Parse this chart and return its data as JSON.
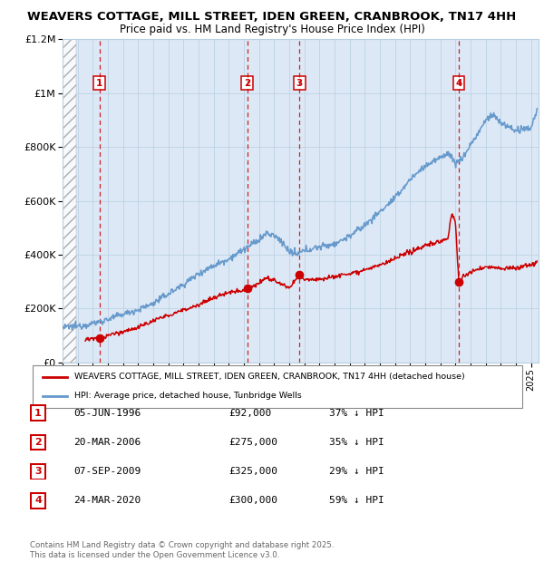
{
  "title": "WEAVERS COTTAGE, MILL STREET, IDEN GREEN, CRANBROOK, TN17 4HH",
  "subtitle": "Price paid vs. HM Land Registry's House Price Index (HPI)",
  "legend_label_red": "WEAVERS COTTAGE, MILL STREET, IDEN GREEN, CRANBROOK, TN17 4HH (detached house)",
  "legend_label_blue": "HPI: Average price, detached house, Tunbridge Wells",
  "footer": "Contains HM Land Registry data © Crown copyright and database right 2025.\nThis data is licensed under the Open Government Licence v3.0.",
  "transactions": [
    {
      "num": 1,
      "date": "05-JUN-1996",
      "price": 92000,
      "pct": "37% ↓ HPI",
      "x_year": 1996.43
    },
    {
      "num": 2,
      "date": "20-MAR-2006",
      "price": 275000,
      "pct": "35% ↓ HPI",
      "x_year": 2006.22
    },
    {
      "num": 3,
      "date": "07-SEP-2009",
      "price": 325000,
      "pct": "29% ↓ HPI",
      "x_year": 2009.68
    },
    {
      "num": 4,
      "date": "24-MAR-2020",
      "price": 300000,
      "pct": "59% ↓ HPI",
      "x_year": 2020.22
    }
  ],
  "ylim": [
    0,
    1200000
  ],
  "xlim": [
    1994.0,
    2025.5
  ],
  "hatch_end": 1994.9,
  "background_color": "#ddeeff",
  "plot_bg": "#dce8f5",
  "red_color": "#cc0000",
  "blue_color": "#6699cc",
  "grid_color": "#b8cfe0",
  "hpi_keypoints_x": [
    1994.0,
    1995.0,
    1996,
    1997,
    1998,
    1999,
    2000,
    2001,
    2002,
    2003,
    2004,
    2005,
    2006,
    2007,
    2007.5,
    2008.0,
    2008.5,
    2009.0,
    2009.5,
    2010,
    2011,
    2012,
    2013,
    2014,
    2015,
    2016,
    2017,
    2018,
    2019,
    2019.5,
    2020.0,
    2020.5,
    2021,
    2021.5,
    2022,
    2022.5,
    2023,
    2024,
    2025.0,
    2025.4
  ],
  "hpi_keypoints_y": [
    130000,
    135000,
    145000,
    160000,
    180000,
    195000,
    220000,
    255000,
    290000,
    330000,
    360000,
    385000,
    420000,
    455000,
    480000,
    470000,
    450000,
    410000,
    400000,
    415000,
    430000,
    440000,
    470000,
    510000,
    560000,
    610000,
    680000,
    730000,
    760000,
    780000,
    740000,
    760000,
    810000,
    850000,
    900000,
    920000,
    890000,
    860000,
    870000,
    940000
  ],
  "red_keypoints_x": [
    1995.5,
    1996.43,
    1996.8,
    1997,
    1998,
    1999,
    2000,
    2001,
    2002,
    2003,
    2004,
    2005,
    2006.0,
    2006.22,
    2006.5,
    2007,
    2007.5,
    2008.0,
    2008.5,
    2009.0,
    2009.68,
    2010,
    2011,
    2012,
    2013,
    2014,
    2015,
    2016,
    2017,
    2018,
    2019.0,
    2019.5,
    2019.75,
    2020.0,
    2020.22,
    2020.5,
    2021,
    2021.5,
    2022,
    2023,
    2024,
    2025.0,
    2025.4
  ],
  "red_keypoints_y": [
    85000,
    92000,
    95000,
    100000,
    115000,
    130000,
    155000,
    175000,
    195000,
    215000,
    240000,
    260000,
    270000,
    275000,
    280000,
    295000,
    315000,
    305000,
    290000,
    275000,
    325000,
    310000,
    310000,
    320000,
    330000,
    345000,
    360000,
    385000,
    410000,
    435000,
    450000,
    460000,
    555000,
    520000,
    300000,
    320000,
    335000,
    345000,
    355000,
    350000,
    350000,
    365000,
    370000
  ]
}
